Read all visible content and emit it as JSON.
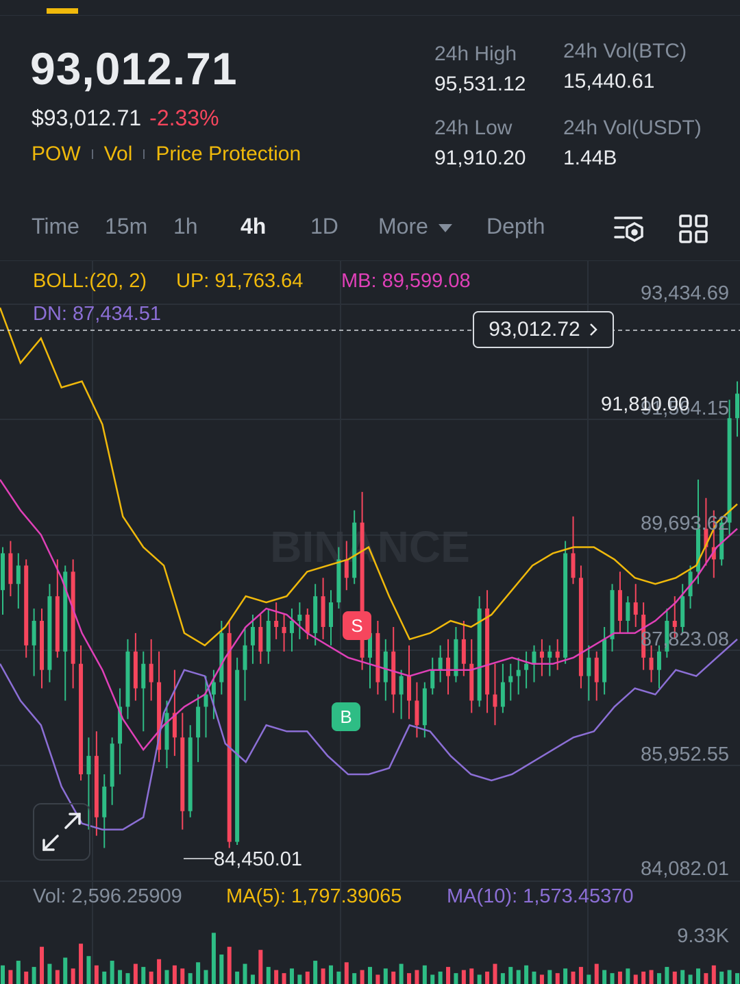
{
  "header": {
    "last_price": "93,012.71",
    "usd_price": "$93,012.71",
    "change_pct": "-2.33%",
    "tags": [
      "POW",
      "Vol",
      "Price Protection"
    ]
  },
  "stats": {
    "high_label": "24h High",
    "high_value": "95,531.12",
    "vol_btc_label": "24h Vol(BTC)",
    "vol_btc_value": "15,440.61",
    "low_label": "24h Low",
    "low_value": "91,910.20",
    "vol_usdt_label": "24h Vol(USDT)",
    "vol_usdt_value": "1.44B"
  },
  "tabs": [
    "Time",
    "15m",
    "1h",
    "4h",
    "1D",
    "More",
    "Depth"
  ],
  "active_tab": "4h",
  "indicator": {
    "boll_label": "BOLL:(20, 2)",
    "up": "UP: 91,763.64",
    "mb": "MB: 89,599.08",
    "dn": "DN: 87,434.51"
  },
  "volume_legend": {
    "vol": "Vol: 2,596.25909",
    "ma5": "MA(5): 1,797.39065",
    "ma10": "MA(10): 1,573.45370"
  },
  "volume_axis": {
    "max": "9.33K"
  },
  "current_price_tag": "93,012.72",
  "watermark": "BINANCE",
  "markers": {
    "sell": "S",
    "buy": "B"
  },
  "annotations": {
    "low_point": "84,450.01",
    "level_right": "91,810.00"
  },
  "colors": {
    "up": "#2ebd85",
    "down": "#f6465d",
    "accent": "#f0b90b",
    "boll_up": "#f0b90b",
    "boll_mb": "#e040b8",
    "boll_dn": "#8c6fd6"
  },
  "icons": [
    "chart-settings-icon",
    "grid-layout-icon",
    "expand-icon",
    "chevron-right-icon",
    "caret-down-icon"
  ],
  "chart_data": {
    "type": "candlestick",
    "y_ticks": [
      "93,434.69",
      "91,564.15",
      "89,693.62",
      "87,823.08",
      "85,952.55",
      "84,082.01"
    ],
    "ylim": [
      84082.01,
      93434.69
    ],
    "current_price": 93012.72,
    "low_annotation": 84450.01,
    "candles": [
      [
        88600,
        89300,
        88200,
        89200
      ],
      [
        89200,
        89400,
        88500,
        88700
      ],
      [
        88700,
        89200,
        88300,
        89000
      ],
      [
        89000,
        89100,
        87500,
        87700
      ],
      [
        87700,
        88300,
        87200,
        88100
      ],
      [
        88100,
        88300,
        87000,
        87300
      ],
      [
        87300,
        88700,
        87100,
        88500
      ],
      [
        88500,
        89100,
        87500,
        87600
      ],
      [
        87600,
        89000,
        86800,
        88900
      ],
      [
        88900,
        89100,
        87000,
        87400
      ],
      [
        87400,
        87700,
        85500,
        85600
      ],
      [
        85600,
        86200,
        84700,
        85900
      ],
      [
        85900,
        86300,
        84600,
        84900
      ],
      [
        84900,
        85600,
        84400,
        85400
      ],
      [
        85400,
        86200,
        85100,
        86100
      ],
      [
        86100,
        87000,
        85600,
        86700
      ],
      [
        86700,
        87800,
        86500,
        87600
      ],
      [
        87600,
        87900,
        86800,
        87000
      ],
      [
        87000,
        87600,
        86300,
        87400
      ],
      [
        87400,
        87800,
        86800,
        87100
      ],
      [
        87100,
        87600,
        85800,
        86000
      ],
      [
        86000,
        86800,
        85700,
        86600
      ],
      [
        86600,
        87300,
        85900,
        86200
      ],
      [
        86200,
        86600,
        84700,
        85000
      ],
      [
        85000,
        86400,
        84900,
        86200
      ],
      [
        86200,
        86900,
        85800,
        86700
      ],
      [
        86700,
        87200,
        86200,
        86900
      ],
      [
        86900,
        87300,
        86500,
        87100
      ],
      [
        87100,
        88100,
        86900,
        87900
      ],
      [
        87900,
        88100,
        84400,
        84500
      ],
      [
        84500,
        87500,
        84450,
        87300
      ],
      [
        87300,
        88000,
        86800,
        87700
      ],
      [
        87700,
        88200,
        87400,
        88000
      ],
      [
        88000,
        88200,
        87400,
        87600
      ],
      [
        87600,
        88300,
        87400,
        88100
      ],
      [
        88100,
        88400,
        87800,
        88000
      ],
      [
        88000,
        88200,
        87600,
        87900
      ],
      [
        87900,
        88300,
        87600,
        88100
      ],
      [
        88100,
        88400,
        87800,
        88200
      ],
      [
        88200,
        88300,
        87800,
        87900
      ],
      [
        87900,
        88700,
        87700,
        88500
      ],
      [
        88500,
        88800,
        87800,
        88000
      ],
      [
        88000,
        88600,
        87700,
        88400
      ],
      [
        88400,
        89300,
        88300,
        89100
      ],
      [
        89100,
        89400,
        88600,
        88800
      ],
      [
        88800,
        89900,
        88700,
        89700
      ],
      [
        89700,
        90200,
        87300,
        87500
      ],
      [
        87500,
        88100,
        87000,
        87900
      ],
      [
        87900,
        88100,
        86900,
        87100
      ],
      [
        87100,
        87800,
        86800,
        87600
      ],
      [
        87600,
        88000,
        86600,
        86900
      ],
      [
        86900,
        87300,
        86500,
        87200
      ],
      [
        87200,
        87700,
        86500,
        86800
      ],
      [
        86800,
        87100,
        86200,
        86400
      ],
      [
        86400,
        87100,
        86200,
        87000
      ],
      [
        87000,
        87500,
        86900,
        87300
      ],
      [
        87300,
        87700,
        87100,
        87500
      ],
      [
        87500,
        87800,
        86900,
        87200
      ],
      [
        87200,
        88000,
        87100,
        87800
      ],
      [
        87800,
        88100,
        87200,
        87400
      ],
      [
        87400,
        87800,
        86600,
        86800
      ],
      [
        86800,
        88500,
        86700,
        88300
      ],
      [
        88300,
        88600,
        86600,
        86900
      ],
      [
        86900,
        87400,
        86400,
        86700
      ],
      [
        86700,
        87400,
        86600,
        87100
      ],
      [
        87100,
        87400,
        86800,
        87200
      ],
      [
        87200,
        87500,
        86900,
        87300
      ],
      [
        87300,
        87600,
        87000,
        87400
      ],
      [
        87400,
        87700,
        87100,
        87600
      ],
      [
        87600,
        87800,
        87200,
        87500
      ],
      [
        87500,
        87700,
        87200,
        87600
      ],
      [
        87600,
        87800,
        87300,
        87500
      ],
      [
        87500,
        89400,
        87400,
        89200
      ],
      [
        89200,
        89800,
        88700,
        88800
      ],
      [
        88800,
        89000,
        87000,
        87200
      ],
      [
        87200,
        87700,
        86800,
        87500
      ],
      [
        87500,
        87600,
        86800,
        87100
      ],
      [
        87100,
        88000,
        86900,
        87800
      ],
      [
        87800,
        88700,
        87600,
        88600
      ],
      [
        88600,
        88900,
        87900,
        88100
      ],
      [
        88100,
        88500,
        87900,
        88400
      ],
      [
        88400,
        88700,
        88000,
        88200
      ],
      [
        88200,
        88400,
        87300,
        87500
      ],
      [
        87500,
        87700,
        87100,
        87300
      ],
      [
        87300,
        87700,
        87000,
        87600
      ],
      [
        87600,
        88300,
        87500,
        88100
      ],
      [
        88100,
        88500,
        87800,
        88000
      ],
      [
        88000,
        88700,
        87900,
        88500
      ],
      [
        88500,
        89000,
        88300,
        88900
      ],
      [
        88900,
        90400,
        88700,
        89600
      ],
      [
        89600,
        90100,
        89000,
        89300
      ],
      [
        89300,
        89900,
        88800,
        89100
      ],
      [
        89100,
        89800,
        89000,
        89700
      ],
      [
        89700,
        91700,
        89500,
        91400
      ],
      [
        91400,
        92000,
        91100,
        91800
      ]
    ],
    "boll_up": [
      93200,
      92300,
      92700,
      91900,
      92000,
      91300,
      89800,
      89300,
      89000,
      87900,
      87700,
      88000,
      88500,
      88400,
      88500,
      88900,
      89000,
      89100,
      89300,
      88500,
      87800,
      87900,
      88100,
      88000,
      88200,
      88600,
      89000,
      89200,
      89300,
      89300,
      89100,
      88800,
      88700,
      88800,
      89000,
      89700,
      90000
    ],
    "boll_mb": [
      90400,
      89900,
      89500,
      88800,
      87900,
      87300,
      86500,
      86000,
      86400,
      86700,
      86900,
      87500,
      88000,
      88300,
      88200,
      87900,
      87700,
      87500,
      87400,
      87300,
      87200,
      87300,
      87300,
      87300,
      87400,
      87500,
      87400,
      87400,
      87500,
      87700,
      87900,
      87900,
      88100,
      88400,
      88800,
      89300,
      89600
    ],
    "boll_dn": [
      87400,
      86800,
      86400,
      85400,
      84800,
      84700,
      84700,
      84900,
      86600,
      87300,
      87200,
      86100,
      85800,
      86400,
      86300,
      86300,
      85900,
      85600,
      85600,
      85700,
      86400,
      86300,
      85900,
      85600,
      85500,
      85600,
      85800,
      86000,
      86200,
      86300,
      86700,
      87000,
      86900,
      87300,
      87200,
      87500,
      87800
    ],
    "volume_ylim": [
      0,
      9330
    ],
    "volumes": [
      1200,
      900,
      1500,
      800,
      1100,
      2400,
      1300,
      900,
      1700,
      1000,
      2600,
      1800,
      1200,
      800,
      1500,
      900,
      700,
      1300,
      1100,
      800,
      1600,
      900,
      1200,
      1000,
      700,
      1400,
      900,
      3300,
      1900,
      2400,
      800,
      1300,
      600,
      2200,
      1100,
      900,
      700,
      1000,
      600,
      800,
      1500,
      1000,
      1200,
      800,
      1400,
      700,
      900,
      1100,
      600,
      1000,
      800,
      1300,
      700,
      900,
      1200,
      600,
      800,
      1100,
      700,
      900,
      1000,
      600,
      800,
      1300,
      700,
      1100,
      900,
      1200,
      800,
      600,
      900,
      700,
      1000,
      800,
      1100,
      600,
      1300,
      900,
      700,
      800,
      1000,
      600,
      800,
      900,
      700,
      1100,
      800,
      900,
      600,
      1000,
      700,
      1200,
      800,
      900,
      700
    ]
  }
}
